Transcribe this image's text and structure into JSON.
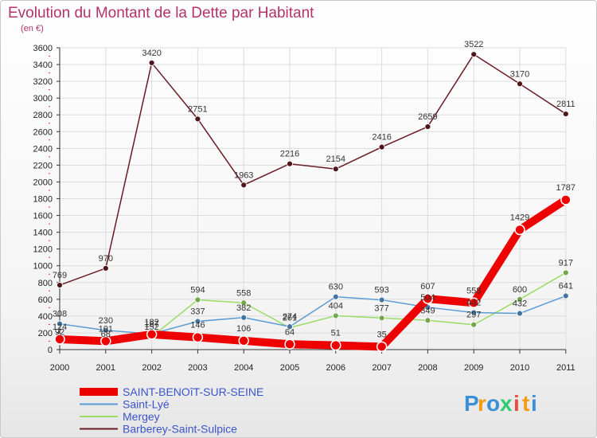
{
  "chart_data": {
    "type": "line",
    "title": "Evolution du Montant de la Dette par Habitant",
    "subtitle": "(en €)",
    "xlabel": "",
    "ylabel": "",
    "ylim": [
      0,
      3600
    ],
    "yticks": [
      0,
      200,
      400,
      600,
      800,
      1000,
      1200,
      1400,
      1600,
      1800,
      2000,
      2200,
      2400,
      2600,
      2800,
      3000,
      3200,
      3400,
      3600
    ],
    "categories": [
      "2000",
      "2001",
      "2002",
      "2003",
      "2004",
      "2005",
      "2006",
      "2007",
      "2008",
      "2009",
      "2010",
      "2011"
    ],
    "legend_position": "bottom-left",
    "series": [
      {
        "name": "Barberey-Saint-Sulpice",
        "color": "#6b1a24",
        "values": [
          769,
          970,
          3420,
          2751,
          1963,
          2216,
          2154,
          2416,
          2659,
          3522,
          3170,
          2811
        ]
      },
      {
        "name": "Mergey",
        "color": "#99dd66",
        "values": [
          92,
          68,
          152,
          594,
          558,
          261,
          404,
          377,
          349,
          297,
          600,
          917
        ]
      },
      {
        "name": "Saint-Lyé",
        "color": "#5b9bd5",
        "values": [
          308,
          230,
          187,
          337,
          382,
          274,
          630,
          593,
          504,
          442,
          432,
          641
        ]
      },
      {
        "name": "SAINT-BENOîT-SUR-SEINE",
        "color": "#ee0000",
        "values": [
          124,
          101,
          182,
          146,
          106,
          64,
          51,
          35,
          607,
          558,
          1429,
          1787
        ]
      }
    ],
    "legend_order": [
      "SAINT-BENOîT-SUR-SEINE",
      "Saint-Lyé",
      "Mergey",
      "Barberey-Saint-Sulpice"
    ]
  },
  "logo": {
    "letters": [
      "P",
      "r",
      "o",
      "x",
      "i",
      "t",
      "i"
    ],
    "colors": [
      "#3a8fd6",
      "#f39c12",
      "#3a8fd6",
      "#2ecc71",
      "#e74c3c",
      "#f39c12",
      "#3a8fd6"
    ]
  }
}
